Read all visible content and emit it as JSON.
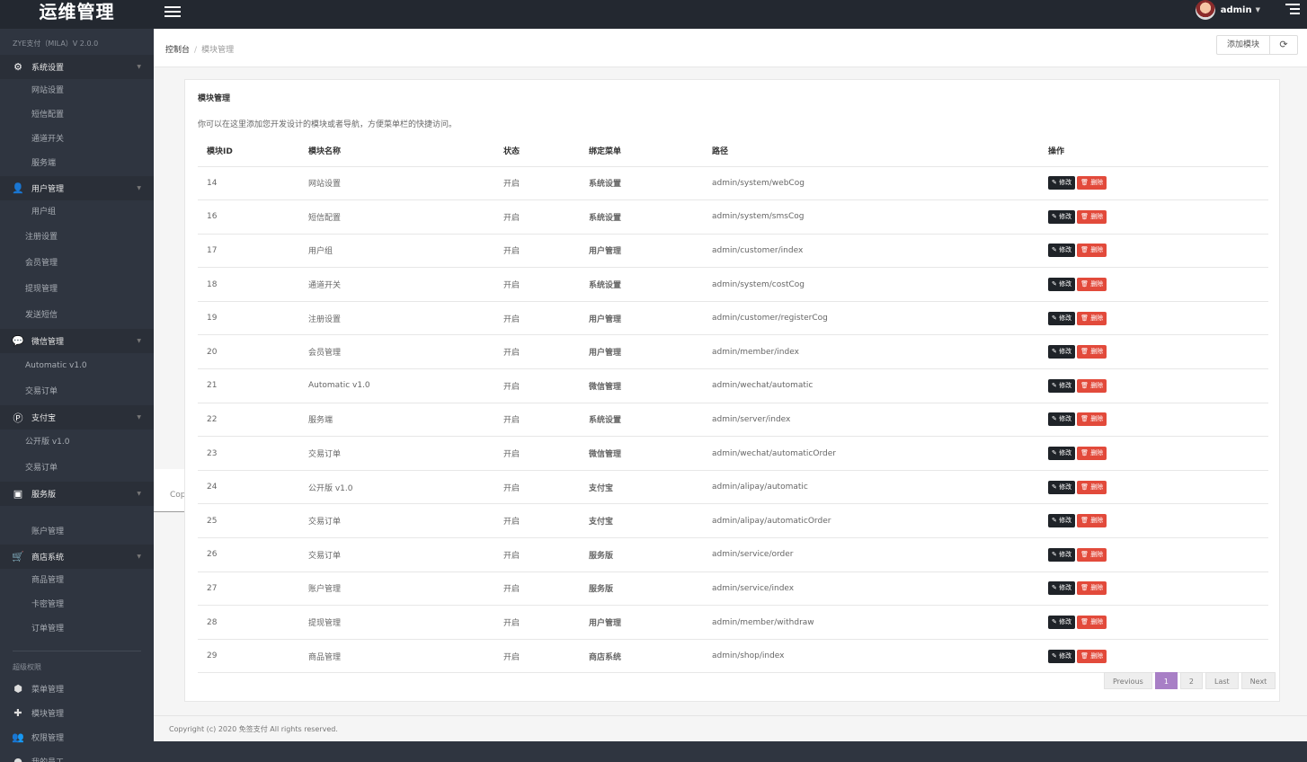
{
  "app": {
    "brand": "运维管理",
    "version": "ZYE支付（MILA）V 2.0.0",
    "user": "admin"
  },
  "breadcrumb": {
    "home": "控制台",
    "sep": "/",
    "current": "模块管理"
  },
  "toolbar": {
    "add_label": "添加模块",
    "refresh_icon": "refresh-icon"
  },
  "sidebar": {
    "groups": [
      {
        "icon": "gear-icon",
        "label": "系统设置",
        "items": [
          "网站设置",
          "短信配置",
          "通道开关",
          "服务端"
        ]
      },
      {
        "icon": "user-icon",
        "label": "用户管理",
        "items": [
          "用户组",
          "注册设置",
          "会员管理",
          "提现管理",
          "发送短信"
        ]
      },
      {
        "icon": "wechat-icon",
        "label": "微信管理",
        "items": [
          "Automatic v1.0",
          "交易订单"
        ]
      },
      {
        "icon": "alipay-icon",
        "label": "支付宝",
        "items": [
          "公开版 v1.0",
          "交易订单"
        ]
      },
      {
        "icon": "service-icon",
        "label": "服务版",
        "items": [
          "账户管理"
        ]
      },
      {
        "icon": "cart-icon",
        "label": "商店系统",
        "items": [
          "商品管理",
          "卡密管理",
          "订单管理"
        ]
      }
    ],
    "admin_label": "超级权限",
    "admin_items": [
      {
        "icon": "cube-icon",
        "label": "菜单管理"
      },
      {
        "icon": "puzzle-icon",
        "label": "模块管理"
      },
      {
        "icon": "users-icon",
        "label": "权限管理"
      },
      {
        "icon": "person-icon",
        "label": "我的员工"
      }
    ]
  },
  "panel": {
    "title": "模块管理",
    "description": "你可以在这里添加您开发设计的模块或者导航，方便菜单栏的快捷访问。",
    "ghost_text": "Copyr",
    "columns": [
      "模块ID",
      "模块名称",
      "状态",
      "绑定菜单",
      "路径",
      "操作"
    ],
    "edit_label": "修改",
    "delete_label": "删除",
    "rows": [
      {
        "id": "14",
        "name": "网站设置",
        "status": "开启",
        "menu": "系统设置",
        "path": "admin/system/webCog"
      },
      {
        "id": "16",
        "name": "短信配置",
        "status": "开启",
        "menu": "系统设置",
        "path": "admin/system/smsCog"
      },
      {
        "id": "17",
        "name": "用户组",
        "status": "开启",
        "menu": "用户管理",
        "path": "admin/customer/index"
      },
      {
        "id": "18",
        "name": "通道开关",
        "status": "开启",
        "menu": "系统设置",
        "path": "admin/system/costCog"
      },
      {
        "id": "19",
        "name": "注册设置",
        "status": "开启",
        "menu": "用户管理",
        "path": "admin/customer/registerCog"
      },
      {
        "id": "20",
        "name": "会员管理",
        "status": "开启",
        "menu": "用户管理",
        "path": "admin/member/index"
      },
      {
        "id": "21",
        "name": "Automatic v1.0",
        "status": "开启",
        "menu": "微信管理",
        "path": "admin/wechat/automatic"
      },
      {
        "id": "22",
        "name": "服务端",
        "status": "开启",
        "menu": "系统设置",
        "path": "admin/server/index"
      },
      {
        "id": "23",
        "name": "交易订单",
        "status": "开启",
        "menu": "微信管理",
        "path": "admin/wechat/automaticOrder"
      },
      {
        "id": "24",
        "name": "公开版 v1.0",
        "status": "开启",
        "menu": "支付宝",
        "path": "admin/alipay/automatic"
      },
      {
        "id": "25",
        "name": "交易订单",
        "status": "开启",
        "menu": "支付宝",
        "path": "admin/alipay/automaticOrder"
      },
      {
        "id": "26",
        "name": "交易订单",
        "status": "开启",
        "menu": "服务版",
        "path": "admin/service/order"
      },
      {
        "id": "27",
        "name": "账户管理",
        "status": "开启",
        "menu": "服务版",
        "path": "admin/service/index"
      },
      {
        "id": "28",
        "name": "提现管理",
        "status": "开启",
        "menu": "用户管理",
        "path": "admin/member/withdraw"
      },
      {
        "id": "29",
        "name": "商品管理",
        "status": "开启",
        "menu": "商店系统",
        "path": "admin/shop/index"
      }
    ]
  },
  "pagination": {
    "previous": "Previous",
    "pages": [
      "1",
      "2"
    ],
    "active": "1",
    "last": "Last",
    "next": "Next"
  },
  "footer": {
    "copyright": "Copyright (c) 2020 免签支付 All rights reserved."
  },
  "colors": {
    "sidebar": "#2f3540",
    "topbar": "#232830",
    "status_green": "#3c9a3c",
    "delete_red": "#e24a3b",
    "pager_active": "#a87fc6"
  }
}
